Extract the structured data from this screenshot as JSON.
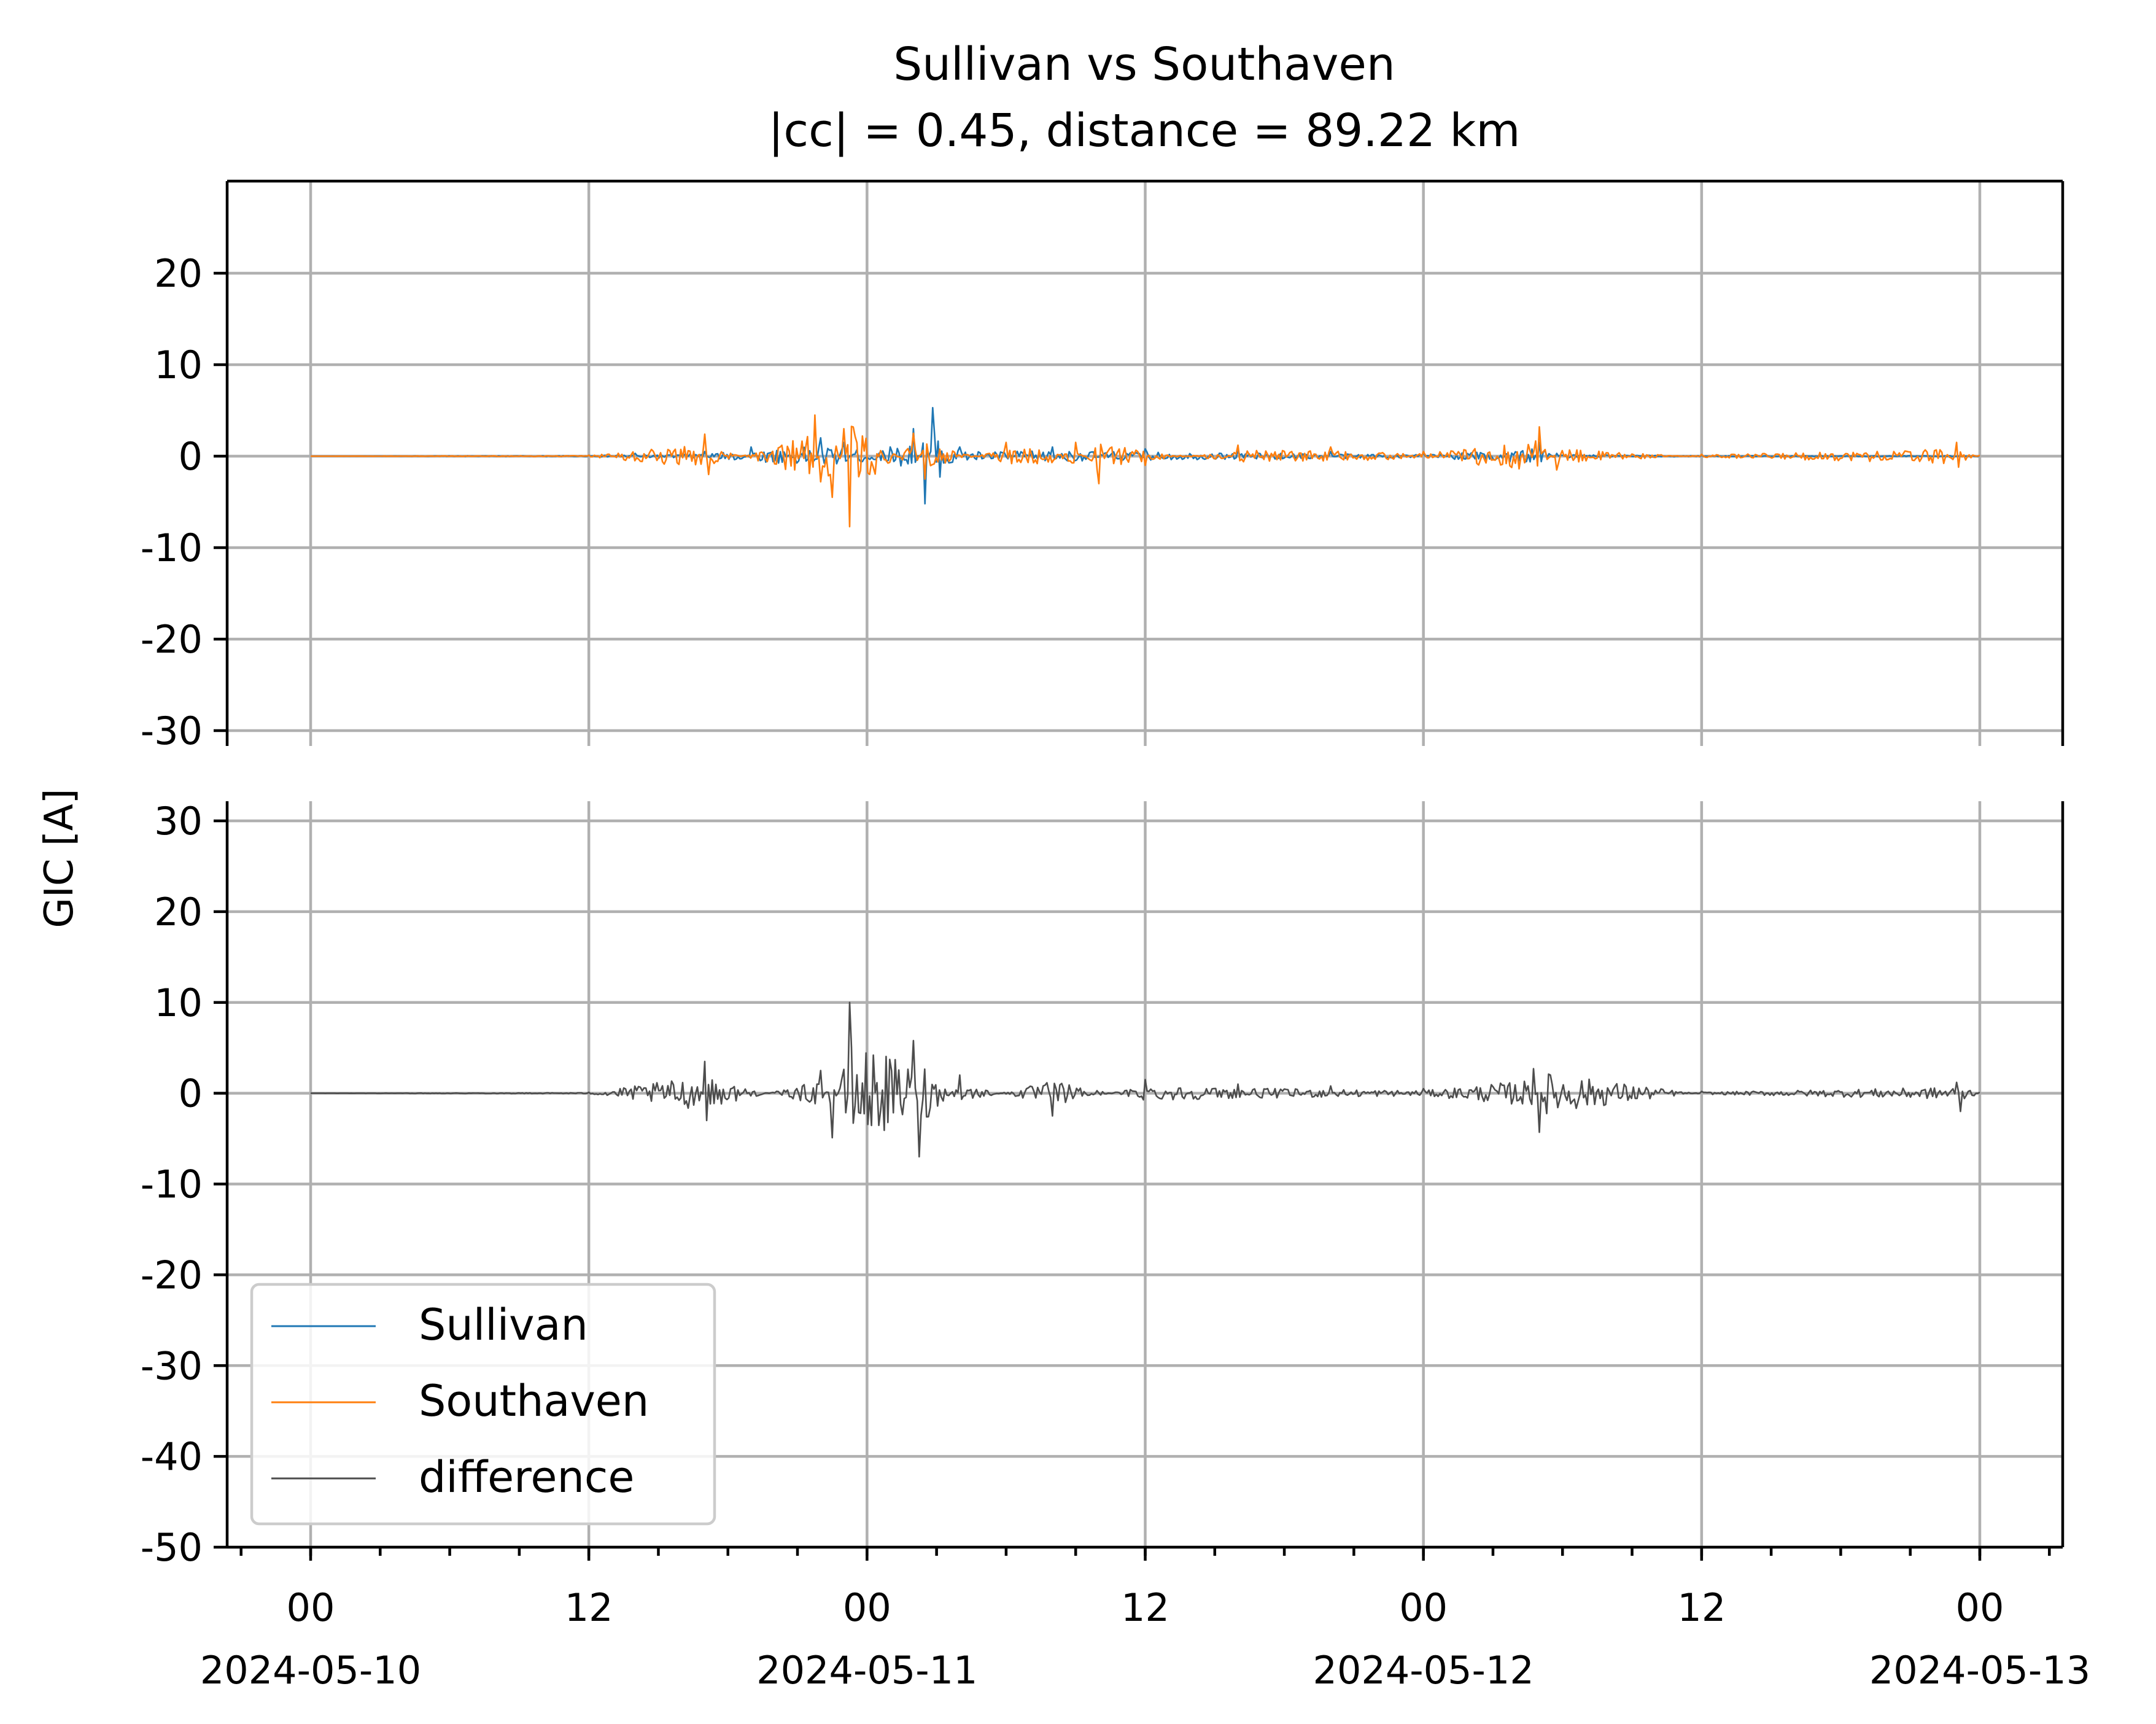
{
  "chart_data": {
    "type": "line",
    "title": "Sullivan vs Southaven",
    "subtitle": "|cc| = 0.45, distance = 89.22 km",
    "ylabel": "GIC [A]",
    "xlim": [
      "2024-05-10 00:00",
      "2024-05-13 00:00"
    ],
    "x_ticks": [
      {
        "hour": "00",
        "date": "2024-05-10"
      },
      {
        "hour": "12",
        "date": ""
      },
      {
        "hour": "00",
        "date": "2024-05-11"
      },
      {
        "hour": "12",
        "date": ""
      },
      {
        "hour": "00",
        "date": "2024-05-12"
      },
      {
        "hour": "12",
        "date": ""
      },
      {
        "hour": "00",
        "date": "2024-05-13"
      }
    ],
    "grid": true,
    "legend": {
      "position": "lower-left",
      "entries": [
        "Sullivan",
        "Southaven",
        "difference"
      ]
    },
    "panels": [
      {
        "name": "top",
        "yticks": [
          "20",
          "10",
          "0",
          "-10",
          "-20",
          "-30"
        ],
        "ylim": [
          -30,
          30
        ],
        "series": [
          {
            "name": "Sullivan",
            "color": "#1f77b4",
            "points": [
              [
                "2024-05-10 00:00",
                0
              ],
              [
                "2024-05-10 12:00",
                0.1
              ],
              [
                "2024-05-10 14:00",
                0.3
              ],
              [
                "2024-05-10 17:00",
                0.5
              ],
              [
                "2024-05-10 19:00",
                1.0
              ],
              [
                "2024-05-10 22:00",
                2.0
              ],
              [
                "2024-05-10 23:00",
                1.5
              ],
              [
                "2024-05-11 01:00",
                1.0
              ],
              [
                "2024-05-11 02:00",
                3.0
              ],
              [
                "2024-05-11 02:30",
                -5.2
              ],
              [
                "2024-05-11 02:50",
                5.3
              ],
              [
                "2024-05-11 04:00",
                1.0
              ],
              [
                "2024-05-11 08:00",
                1.0
              ],
              [
                "2024-05-11 12:00",
                0.8
              ],
              [
                "2024-05-11 16:00",
                0.6
              ],
              [
                "2024-05-11 20:00",
                0.5
              ],
              [
                "2024-05-12 00:00",
                0.3
              ],
              [
                "2024-05-12 05:00",
                1.5
              ],
              [
                "2024-05-12 05:45",
                0.3
              ],
              [
                "2024-05-12 12:00",
                0.1
              ],
              [
                "2024-05-13 00:00",
                0.1
              ]
            ]
          },
          {
            "name": "Southaven",
            "color": "#ff7f0e",
            "points": [
              [
                "2024-05-10 00:00",
                0
              ],
              [
                "2024-05-10 12:00",
                0.1
              ],
              [
                "2024-05-10 17:00",
                2.4
              ],
              [
                "2024-05-10 17:10",
                -2.0
              ],
              [
                "2024-05-10 21:45",
                4.5
              ],
              [
                "2024-05-10 22:00",
                -2.8
              ],
              [
                "2024-05-10 22:30",
                -4.5
              ],
              [
                "2024-05-10 23:00",
                3.0
              ],
              [
                "2024-05-10 23:15",
                -7.7
              ],
              [
                "2024-05-11 02:00",
                2.5
              ],
              [
                "2024-05-11 02:30",
                -2.5
              ],
              [
                "2024-05-11 06:00",
                1.5
              ],
              [
                "2024-05-11 09:00",
                1.5
              ],
              [
                "2024-05-11 10:00",
                -3.0
              ],
              [
                "2024-05-11 12:00",
                -1.0
              ],
              [
                "2024-05-11 16:00",
                1.2
              ],
              [
                "2024-05-11 20:00",
                1.0
              ],
              [
                "2024-05-12 00:00",
                0.5
              ],
              [
                "2024-05-12 05:00",
                3.2
              ],
              [
                "2024-05-12 05:45",
                -1.5
              ],
              [
                "2024-05-12 12:00",
                0.2
              ],
              [
                "2024-05-12 23:00",
                1.5
              ],
              [
                "2024-05-12 23:05",
                -1.2
              ],
              [
                "2024-05-13 00:00",
                0.1
              ]
            ]
          }
        ]
      },
      {
        "name": "bottom",
        "yticks": [
          "30",
          "20",
          "10",
          "0",
          "-10",
          "-20",
          "-30",
          "-40",
          "-50"
        ],
        "ylim": [
          -50,
          35
        ],
        "series": [
          {
            "name": "difference",
            "color": "#4d4d4d",
            "points": [
              [
                "2024-05-10 00:00",
                0
              ],
              [
                "2024-05-10 12:00",
                0.1
              ],
              [
                "2024-05-10 17:00",
                3.5
              ],
              [
                "2024-05-10 17:05",
                -3.0
              ],
              [
                "2024-05-10 22:00",
                2.5
              ],
              [
                "2024-05-10 22:30",
                -4.9
              ],
              [
                "2024-05-10 23:15",
                10.0
              ],
              [
                "2024-05-11 02:00",
                5.8
              ],
              [
                "2024-05-11 02:15",
                -7.0
              ],
              [
                "2024-05-11 04:00",
                2.0
              ],
              [
                "2024-05-11 08:00",
                -2.5
              ],
              [
                "2024-05-11 12:00",
                1.5
              ],
              [
                "2024-05-11 16:00",
                1.0
              ],
              [
                "2024-05-11 20:00",
                0.8
              ],
              [
                "2024-05-12 00:00",
                0.5
              ],
              [
                "2024-05-12 04:45",
                2.7
              ],
              [
                "2024-05-12 05:00",
                -4.3
              ],
              [
                "2024-05-12 12:00",
                0.2
              ],
              [
                "2024-05-12 23:00",
                1.2
              ],
              [
                "2024-05-12 23:10",
                -2.0
              ],
              [
                "2024-05-13 00:00",
                0.1
              ]
            ]
          }
        ]
      }
    ]
  }
}
